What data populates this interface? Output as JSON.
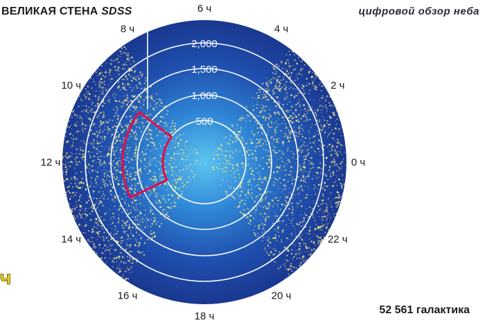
{
  "title": {
    "prefix": "ВЕЛИКАЯ СТЕНА",
    "survey": "SDSS"
  },
  "survey_caption": "цифровой обзор неба",
  "galaxy_count": "52 561 галактика",
  "side_fragment": "ч",
  "hour_labels": [
    {
      "text": "6 ч",
      "hour": 6
    },
    {
      "text": "4 ч",
      "hour": 4
    },
    {
      "text": "2 ч",
      "hour": 2
    },
    {
      "text": "0 ч",
      "hour": 0
    },
    {
      "text": "22 ч",
      "hour": 22
    },
    {
      "text": "20 ч",
      "hour": 20
    },
    {
      "text": "18 ч",
      "hour": 18
    },
    {
      "text": "16 ч",
      "hour": 16
    },
    {
      "text": "14 ч",
      "hour": 14
    },
    {
      "text": "12 ч",
      "hour": 12
    },
    {
      "text": "10 ч",
      "hour": 10
    },
    {
      "text": "8 ч",
      "hour": 8
    }
  ],
  "distance_rings": [
    {
      "label": "500",
      "value": 500
    },
    {
      "label": "1,000",
      "value": 1000
    },
    {
      "label": "1,500",
      "value": 1500
    },
    {
      "label": "2,000",
      "value": 2000
    }
  ],
  "great_wall_region": {
    "hour_from": 9.5,
    "hour_to": 13.7,
    "distance_from": 500,
    "distance_to": 1280
  },
  "colors": {
    "disk_outer": "#1c3f9c",
    "disk_inner": "#4db6ea",
    "galaxies": "#f2e58a",
    "rings": "#ffffff",
    "wall_outline": "#e0104e"
  }
}
